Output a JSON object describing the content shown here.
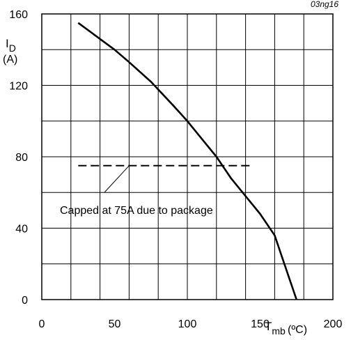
{
  "chart_data": {
    "type": "line",
    "figure_code": "03ng16",
    "xlim": [
      0,
      200
    ],
    "ylim": [
      0,
      160
    ],
    "x_ticks": [
      "0",
      "50",
      "100",
      "150",
      "200"
    ],
    "y_ticks": [
      "0",
      "40",
      "80",
      "120",
      "160"
    ],
    "grid": true,
    "xlabel": {
      "main": "T",
      "sub": "mb",
      "unit": "(ºC)"
    },
    "ylabel": {
      "main": "I",
      "sub": "D",
      "unit": "(A)"
    },
    "series": [
      {
        "style": "solid",
        "x": [
          25,
          40,
          50,
          60,
          75,
          90,
          100,
          110,
          120,
          130,
          140,
          150,
          155,
          160,
          165,
          170,
          175
        ],
        "y": [
          155,
          146,
          140,
          133,
          122,
          109,
          100,
          90,
          80,
          68,
          58,
          48,
          42,
          36,
          24,
          12,
          0
        ]
      },
      {
        "style": "dashed",
        "x": [
          25,
          145
        ],
        "y": [
          75,
          75
        ]
      }
    ],
    "annotation": {
      "text": "Capped at 75A due to package",
      "leader_from": [
        60,
        75
      ],
      "leader_to": [
        43,
        60
      ]
    }
  }
}
